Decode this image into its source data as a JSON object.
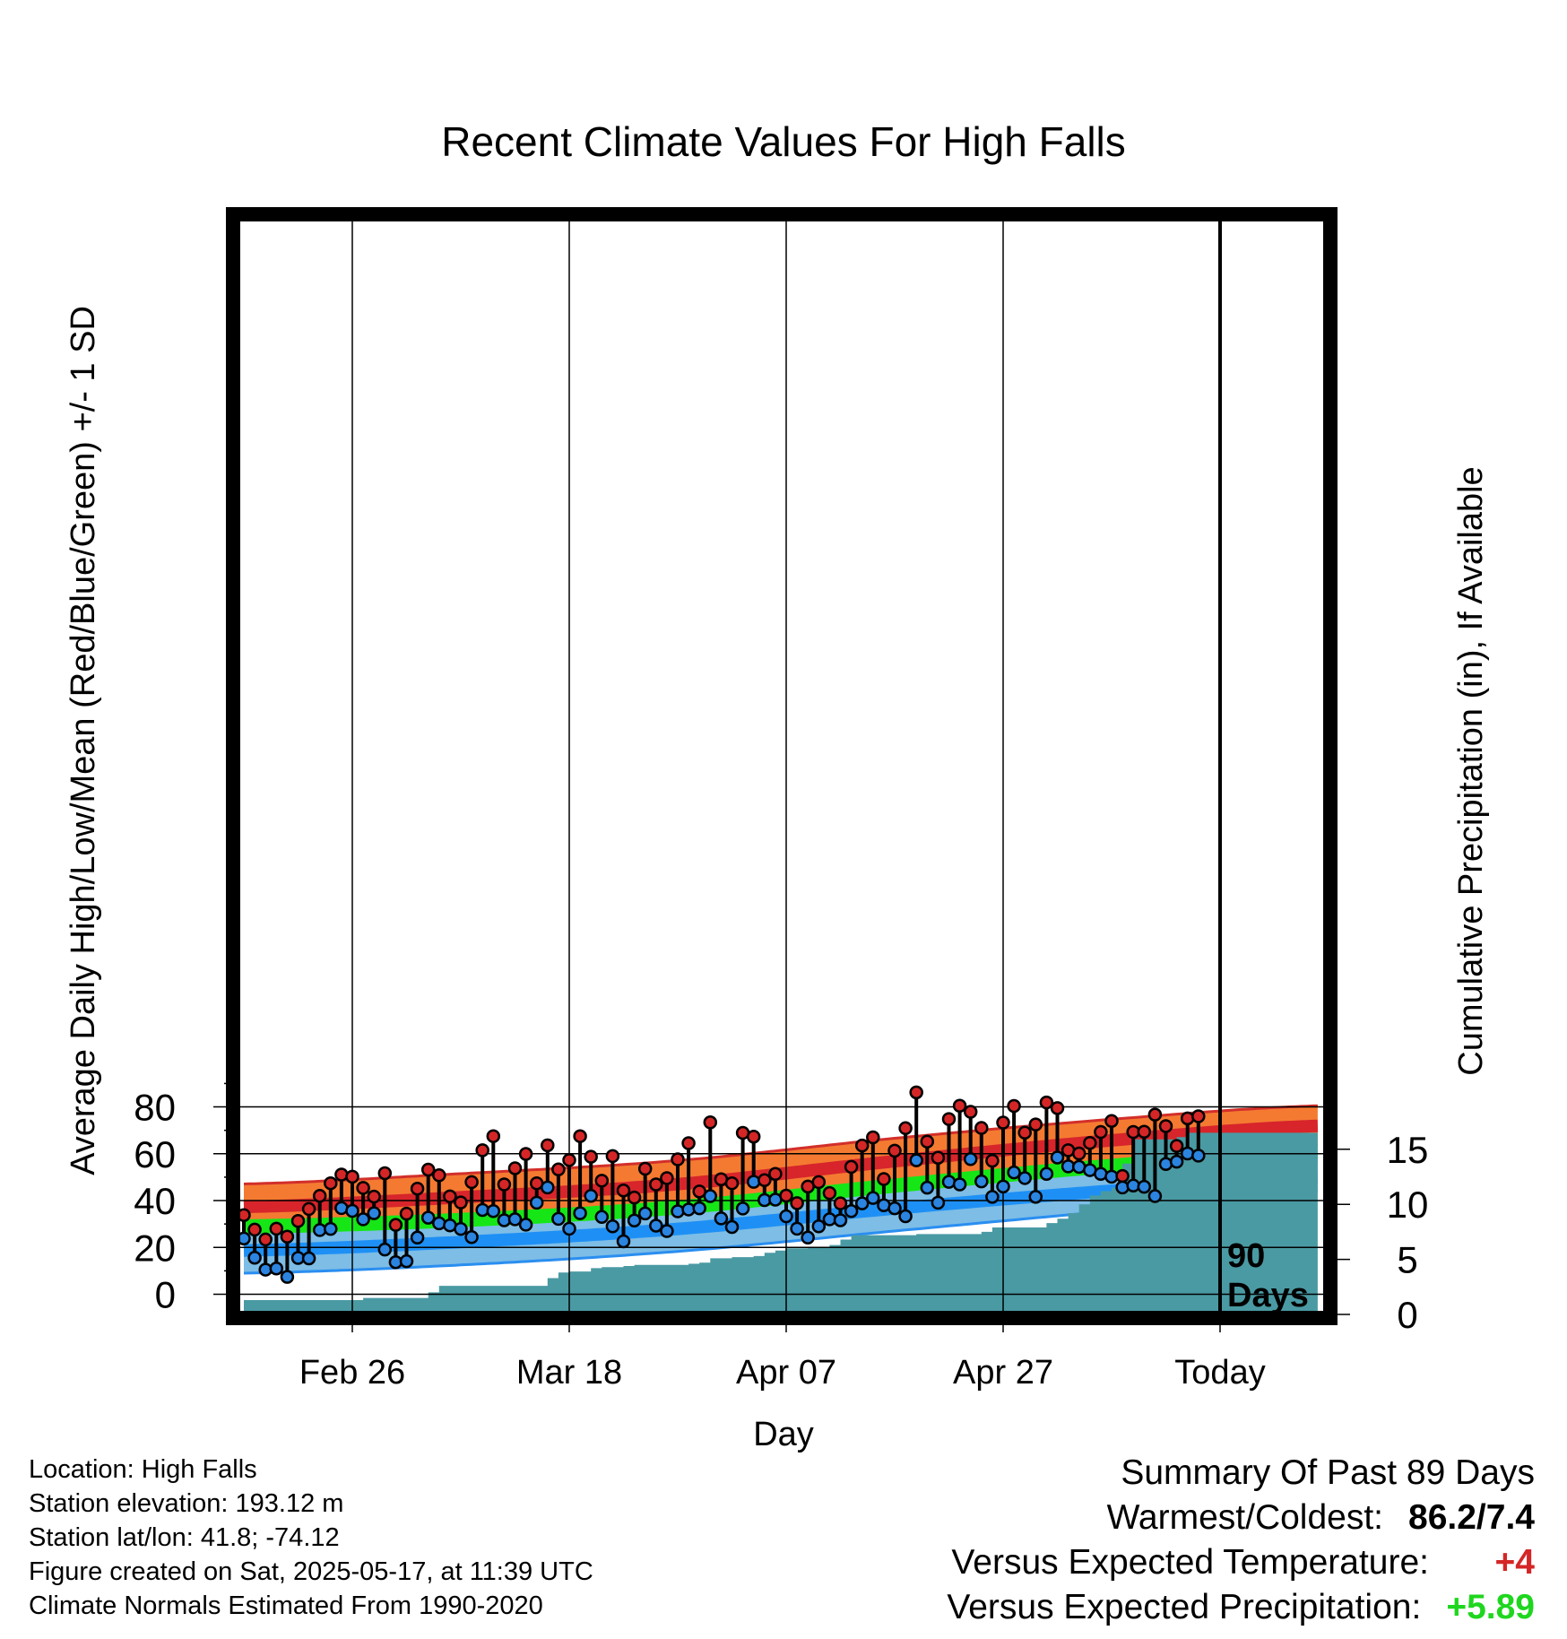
{
  "chart_data": {
    "type": "line",
    "title": "Recent Climate Values For High Falls",
    "xlabel": "Day",
    "ylabel": "Average Daily High/Low/Mean (Red/Blue/Green) +/- 1 SD",
    "y2label": "Cumulative Precipitation (in), If Available",
    "ylim": [
      -2,
      92
    ],
    "y2lim": [
      0,
      18.5
    ],
    "yticks": [
      0,
      20,
      40,
      60,
      80
    ],
    "y2ticks": [
      0,
      5,
      10,
      15
    ],
    "xlim": [
      0,
      99
    ],
    "x_tick_positions": [
      10,
      30,
      50,
      70,
      90
    ],
    "x_tick_labels": [
      "Feb 26",
      "Mar 18",
      "Apr 07",
      "Apr 27",
      "Today"
    ],
    "today_marker_label": "90\nDays",
    "grid": true,
    "colors": {
      "high_band": "#f47a31",
      "high_mean": "#d7252b",
      "high_edge": "#d22f2a",
      "mean_line": "#16e616",
      "low_band": "#7dbde6",
      "low_mean": "#1e90f5",
      "low_edge": "#2a8ef0",
      "precip": "#4a9aa3",
      "high_dot": "#d42626",
      "low_dot": "#2a84e0"
    },
    "normal_high": {
      "x": [
        0,
        20,
        40,
        60,
        80,
        99
      ],
      "mean": [
        37.3,
        41.4,
        47.0,
        56.8,
        65.7,
        71.9
      ],
      "upper": [
        47.1,
        51.5,
        57.1,
        66.6,
        74.7,
        80.5
      ],
      "lower": [
        27.6,
        32.3,
        37.3,
        47.1,
        56.4,
        63.6
      ]
    },
    "normal_mean": {
      "x": [
        0,
        20,
        40,
        60,
        80,
        99
      ],
      "values": [
        28.9,
        31.7,
        37.1,
        46.4,
        54.8,
        60.9
      ]
    },
    "normal_low": {
      "x": [
        0,
        20,
        40,
        60,
        80,
        99
      ],
      "mean": [
        18.7,
        22.3,
        27.9,
        36.6,
        44.2,
        50.0
      ],
      "upper": [
        28.6,
        32.2,
        37.2,
        45.9,
        52.8,
        57.1
      ],
      "lower": [
        9.0,
        12.5,
        18.3,
        27.0,
        35.6,
        44.0
      ]
    },
    "daily_high": [
      33.8,
      27.6,
      23.4,
      28.0,
      24.6,
      31.3,
      36.4,
      42.0,
      47.4,
      51.1,
      50.2,
      45.4,
      41.7,
      51.7,
      29.6,
      34.4,
      45.1,
      53.2,
      50.8,
      41.8,
      39.2,
      47.9,
      61.5,
      67.5,
      46.9,
      53.8,
      59.9,
      47.4,
      63.6,
      53.3,
      57.3,
      67.5,
      58.7,
      48.5,
      59.0,
      44.3,
      41.3,
      53.6,
      46.9,
      49.6,
      57.6,
      64.5,
      43.9,
      73.4,
      49.1,
      47.4,
      68.9,
      67.3,
      48.7,
      51.4,
      42.1,
      38.9,
      46.0,
      47.9,
      43.2,
      38.8,
      54.4,
      63.5,
      67.0,
      49.2,
      61.3,
      70.9,
      86.2,
      65.2,
      58.3,
      74.8,
      80.5,
      77.9,
      71.0,
      57.0,
      73.3,
      80.4,
      69.0,
      72.5,
      81.9,
      79.5,
      61.5,
      60.1,
      64.6,
      69.3,
      74.0,
      50.5,
      69.3,
      69.4,
      76.7,
      71.8,
      63.3,
      75.1,
      76.0
    ],
    "daily_low": [
      23.8,
      15.6,
      10.5,
      11.0,
      7.4,
      15.5,
      15.3,
      27.4,
      27.9,
      36.8,
      35.6,
      32.0,
      34.6,
      19.1,
      13.7,
      14.1,
      24.2,
      32.7,
      30.3,
      29.4,
      27.9,
      24.4,
      36.0,
      35.5,
      31.6,
      32.0,
      29.7,
      39.1,
      45.6,
      32.2,
      28.0,
      34.6,
      42.0,
      33.0,
      29.0,
      22.6,
      31.5,
      34.5,
      29.3,
      27.0,
      35.4,
      36.2,
      36.7,
      41.9,
      32.4,
      28.7,
      36.6,
      48.0,
      40.2,
      40.4,
      33.3,
      28.0,
      24.2,
      29.0,
      32.0,
      31.6,
      35.5,
      38.8,
      41.1,
      38.0,
      36.7,
      33.3,
      57.2,
      45.5,
      39.1,
      48.0,
      46.9,
      57.7,
      48.2,
      41.6,
      46.0,
      52.0,
      49.6,
      41.6,
      51.4,
      58.4,
      54.6,
      54.4,
      53.0,
      51.4,
      50.2,
      45.6,
      46.4,
      45.9,
      41.9,
      55.6,
      56.6,
      60.1,
      59.2
    ],
    "precip_cumulative": [
      1.3,
      1.3,
      1.3,
      1.3,
      1.3,
      1.3,
      1.3,
      1.3,
      1.3,
      1.3,
      1.3,
      1.5,
      1.5,
      1.5,
      1.5,
      1.5,
      1.5,
      2.0,
      2.6,
      2.6,
      2.6,
      2.6,
      2.6,
      2.6,
      2.6,
      2.6,
      2.6,
      2.6,
      3.3,
      3.8,
      3.9,
      3.9,
      4.2,
      4.3,
      4.3,
      4.4,
      4.5,
      4.5,
      4.5,
      4.5,
      4.5,
      4.6,
      4.7,
      5.1,
      5.1,
      5.2,
      5.2,
      5.3,
      5.6,
      5.8,
      6.0,
      6.0,
      6.1,
      6.1,
      6.3,
      6.8,
      7.2,
      7.2,
      7.2,
      7.2,
      7.2,
      7.2,
      7.3,
      7.3,
      7.3,
      7.3,
      7.3,
      7.3,
      7.5,
      7.9,
      7.9,
      7.9,
      7.9,
      7.9,
      8.3,
      8.7,
      9.2,
      10.0,
      10.8,
      11.2,
      11.5,
      13.7,
      15.9,
      15.9,
      15.9,
      15.9,
      16.1,
      16.5,
      16.5,
      16.5,
      16.5,
      16.5,
      16.5,
      16.5,
      16.5,
      16.5,
      16.5,
      16.5,
      16.5,
      16.5
    ],
    "precip_x": [
      0,
      1,
      2,
      3,
      4,
      5,
      6,
      7,
      8,
      9,
      10,
      11,
      12,
      13,
      14,
      15,
      16,
      17,
      18,
      19,
      20,
      21,
      22,
      23,
      24,
      25,
      26,
      27,
      28,
      29,
      30,
      31,
      32,
      33,
      34,
      35,
      36,
      37,
      38,
      39,
      40,
      41,
      42,
      43,
      44,
      45,
      46,
      47,
      48,
      49,
      50,
      51,
      52,
      53,
      54,
      55,
      56,
      57,
      58,
      59,
      60,
      61,
      62,
      63,
      64,
      65,
      66,
      67,
      68,
      69,
      70,
      71,
      72,
      73,
      74,
      75,
      76,
      77,
      78,
      79,
      80,
      81,
      82,
      83,
      84,
      85,
      86,
      87,
      88,
      89,
      90,
      91,
      92,
      93,
      94,
      95,
      96,
      97,
      98,
      99
    ]
  },
  "footer": {
    "location": "Location: High Falls",
    "elevation": "Station elevation: 193.12 m",
    "latlon": "Station lat/lon: 41.8; -74.12",
    "created": "Figure created on Sat, 2025-05-17, at 11:39 UTC",
    "normals": "Climate Normals Estimated From 1990-2020"
  },
  "summary": {
    "heading": "Summary Of Past 89 Days",
    "warmest_label": "Warmest/Coldest:",
    "warmest_value": "86.2/7.4",
    "temp_label": "Versus Expected Temperature:",
    "temp_value": "+4",
    "temp_color": "#d42626",
    "precip_label": "Versus Expected Precipitation:",
    "precip_value": "+5.89",
    "precip_color": "#1fd61f"
  }
}
